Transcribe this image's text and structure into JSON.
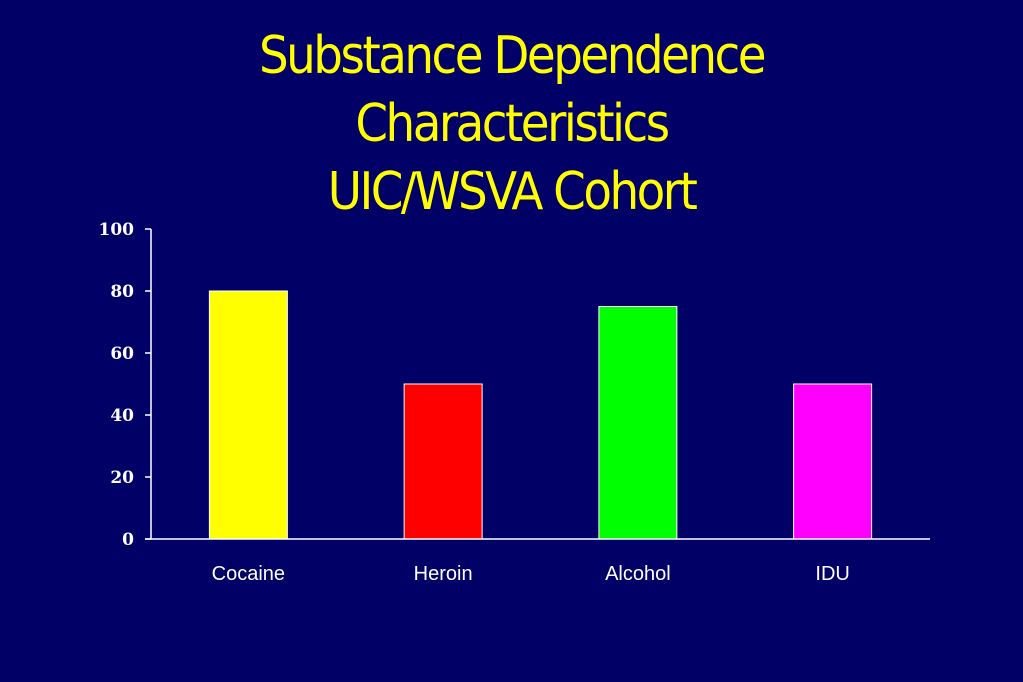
{
  "slide": {
    "title_lines": [
      "Substance Dependence",
      "Characteristics",
      "UIC/WSVA Cohort"
    ]
  },
  "colors": {
    "background": "#000066",
    "title": "#ffff00",
    "axis": "#ffffff",
    "bar_outline": "#ffffff"
  },
  "chart_data": {
    "type": "bar",
    "title": "Substance Dependence Characteristics UIC/WSVA Cohort",
    "categories": [
      "Cocaine",
      "Heroin",
      "Alcohol",
      "IDU"
    ],
    "values": [
      80,
      50,
      75,
      50
    ],
    "bar_colors": [
      "#ffff00",
      "#ff0000",
      "#00ff00",
      "#ff00ff"
    ],
    "xlabel": "",
    "ylabel": "",
    "ylim": [
      0,
      100
    ],
    "yticks": [
      0,
      20,
      40,
      60,
      80,
      100
    ],
    "grid": false,
    "legend": "none"
  }
}
